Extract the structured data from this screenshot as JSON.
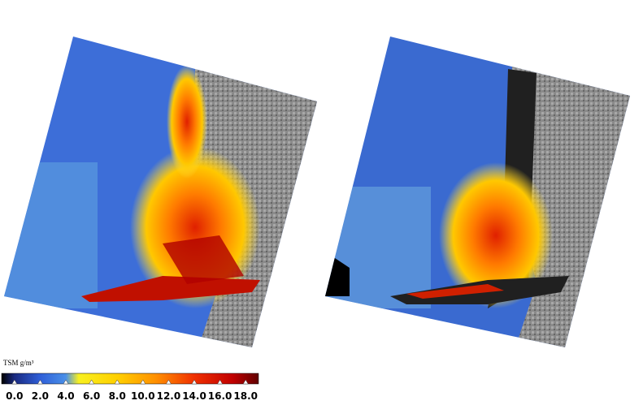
{
  "colorbar": {
    "title": "TSM g/m³",
    "lim": [
      -1,
      19
    ],
    "ticks": [
      {
        "value": 0,
        "label": "0.0"
      },
      {
        "value": 2,
        "label": "2.0"
      },
      {
        "value": 4,
        "label": "4.0"
      },
      {
        "value": 6,
        "label": "6.0"
      },
      {
        "value": 8,
        "label": "8.0"
      },
      {
        "value": 10,
        "label": "10.0"
      },
      {
        "value": 12,
        "label": "12.0"
      },
      {
        "value": 14,
        "label": "14.0"
      },
      {
        "value": 16,
        "label": "16.0"
      },
      {
        "value": 18,
        "label": "18.0"
      }
    ]
  }
}
